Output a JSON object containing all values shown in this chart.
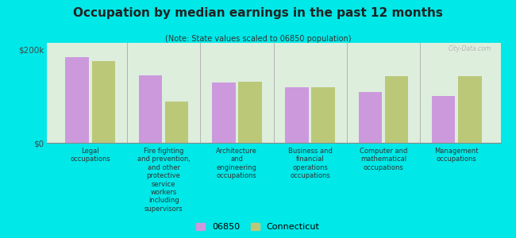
{
  "title": "Occupation by median earnings in the past 12 months",
  "subtitle": "(Note: State values scaled to 06850 population)",
  "background_color": "#00e8e8",
  "plot_bg_color": "#ddeedd",
  "categories": [
    "Legal\noccupations",
    "Fire fighting\nand prevention,\nand other\nprotective\nservice\nworkers\nincluding\nsupervisors",
    "Architecture\nand\nengineering\noccupations",
    "Business and\nfinancial\noperations\noccupations",
    "Computer and\nmathematical\noccupations",
    "Management\noccupations"
  ],
  "values_06850": [
    185000,
    145000,
    130000,
    120000,
    110000,
    100000
  ],
  "values_ct": [
    175000,
    88000,
    132000,
    120000,
    143000,
    143000
  ],
  "color_06850": "#cc99dd",
  "color_ct": "#bbc878",
  "ylim": [
    0,
    215000
  ],
  "yticks": [
    0,
    200000
  ],
  "ytick_labels": [
    "$0",
    "$200k"
  ],
  "legend_06850": "06850",
  "legend_ct": "Connecticut",
  "watermark": "City-Data.com"
}
